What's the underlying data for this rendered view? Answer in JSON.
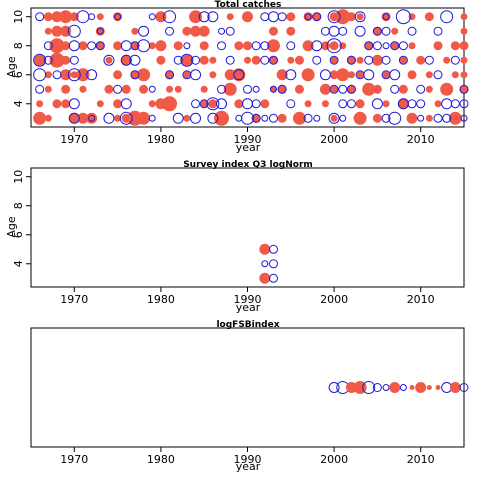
{
  "chart_data": [
    {
      "type": "scatter",
      "title": "Total catches",
      "xlabel": "year",
      "ylabel": "Age",
      "xlim": [
        1965,
        2015
      ],
      "ylim": [
        2.4,
        10.6
      ],
      "xticks": [
        1970,
        1980,
        1990,
        2000,
        2010
      ],
      "yticks": [
        4,
        6,
        8,
        10
      ],
      "x": [
        1966,
        1967,
        1968,
        1969,
        1970,
        1971,
        1972,
        1973,
        1974,
        1975,
        1976,
        1977,
        1978,
        1979,
        1980,
        1981,
        1982,
        1983,
        1984,
        1985,
        1986,
        1987,
        1988,
        1989,
        1990,
        1991,
        1992,
        1993,
        1994,
        1995,
        1996,
        1997,
        1998,
        1999,
        2000,
        2001,
        2002,
        2003,
        2004,
        2005,
        2006,
        2007,
        2008,
        2009,
        2010,
        2011,
        2012,
        2013,
        2014,
        2015
      ],
      "ages": [
        3,
        4,
        5,
        6,
        7,
        8,
        9,
        10
      ],
      "series": [
        {
          "name": "",
          "color": "#f05a46",
          "filled": true,
          "values": [
            [
              6,
              3,
              0,
              0,
              5,
              5,
              5,
              0,
              0,
              3,
              4,
              7,
              6,
              0,
              0,
              0,
              0,
              3,
              0,
              0,
              0,
              7,
              0,
              0,
              0,
              4,
              0,
              0,
              4,
              0,
              6,
              0,
              0,
              0,
              3,
              0,
              0,
              6,
              0,
              4,
              0,
              0,
              0,
              5,
              0,
              3,
              0,
              0,
              6,
              0
            ],
            [
              3,
              0,
              4,
              4,
              0,
              0,
              0,
              3,
              0,
              4,
              0,
              0,
              0,
              3,
              5,
              7,
              0,
              0,
              0,
              3,
              4,
              0,
              0,
              4,
              0,
              0,
              4,
              0,
              0,
              0,
              0,
              3,
              0,
              3,
              0,
              0,
              0,
              4,
              0,
              0,
              3,
              0,
              5,
              0,
              0,
              0,
              3,
              0,
              0,
              0
            ],
            [
              0,
              3,
              0,
              4,
              0,
              3,
              0,
              0,
              4,
              0,
              4,
              0,
              4,
              0,
              0,
              3,
              3,
              0,
              0,
              3,
              0,
              0,
              6,
              0,
              0,
              0,
              0,
              3,
              4,
              0,
              4,
              0,
              0,
              5,
              3,
              0,
              4,
              0,
              6,
              4,
              0,
              0,
              4,
              0,
              0,
              3,
              0,
              6,
              0,
              4
            ],
            [
              0,
              3,
              0,
              5,
              3,
              6,
              0,
              0,
              0,
              4,
              0,
              4,
              6,
              0,
              0,
              4,
              0,
              3,
              0,
              0,
              3,
              0,
              5,
              6,
              0,
              0,
              0,
              0,
              5,
              0,
              0,
              6,
              0,
              0,
              4,
              6,
              3,
              3,
              0,
              0,
              3,
              0,
              0,
              4,
              0,
              3,
              0,
              0,
              3,
              3
            ],
            [
              5,
              0,
              7,
              4,
              0,
              0,
              0,
              0,
              3,
              0,
              5,
              0,
              0,
              0,
              4,
              0,
              0,
              5,
              0,
              4,
              3,
              0,
              0,
              0,
              3,
              4,
              0,
              4,
              0,
              3,
              4,
              0,
              0,
              0,
              3,
              0,
              4,
              3,
              0,
              5,
              0,
              0,
              3,
              0,
              4,
              0,
              0,
              3,
              0,
              3
            ],
            [
              0,
              0,
              7,
              4,
              0,
              4,
              0,
              4,
              0,
              4,
              0,
              4,
              0,
              3,
              5,
              0,
              4,
              0,
              0,
              4,
              0,
              0,
              0,
              4,
              4,
              0,
              0,
              6,
              0,
              0,
              0,
              5,
              0,
              4,
              4,
              3,
              0,
              0,
              4,
              0,
              0,
              4,
              0,
              3,
              0,
              0,
              4,
              0,
              4,
              4
            ],
            [
              0,
              3,
              5,
              5,
              0,
              0,
              0,
              4,
              0,
              0,
              0,
              3,
              0,
              0,
              0,
              0,
              0,
              4,
              5,
              5,
              0,
              0,
              0,
              0,
              0,
              0,
              0,
              4,
              0,
              4,
              0,
              0,
              0,
              0,
              0,
              0,
              0,
              0,
              0,
              4,
              0,
              3,
              0,
              0,
              0,
              0,
              0,
              0,
              0,
              3
            ],
            [
              0,
              4,
              5,
              6,
              4,
              0,
              0,
              3,
              0,
              4,
              0,
              0,
              0,
              0,
              5,
              0,
              0,
              0,
              6,
              0,
              0,
              0,
              3,
              0,
              5,
              0,
              0,
              0,
              0,
              4,
              0,
              4,
              4,
              0,
              4,
              7,
              4,
              3,
              0,
              0,
              4,
              0,
              0,
              3,
              0,
              4,
              0,
              0,
              0,
              3
            ]
          ]
        },
        {
          "name": "",
          "color": "#1a1adc",
          "filled": false,
          "values": [
            [
              0,
              0,
              0,
              0,
              5,
              0,
              3,
              0,
              5,
              0,
              6,
              0,
              0,
              3,
              0,
              0,
              5,
              0,
              5,
              0,
              5,
              0,
              0,
              3,
              6,
              4,
              3,
              4,
              0,
              0,
              0,
              4,
              3,
              0,
              5,
              3,
              0,
              0,
              0,
              0,
              4,
              6,
              0,
              0,
              3,
              0,
              4,
              4,
              0,
              3
            ],
            [
              0,
              0,
              0,
              0,
              5,
              0,
              0,
              0,
              0,
              0,
              5,
              0,
              0,
              0,
              0,
              0,
              0,
              0,
              4,
              4,
              6,
              5,
              0,
              0,
              5,
              4,
              0,
              0,
              0,
              4,
              0,
              0,
              0,
              0,
              0,
              4,
              4,
              0,
              0,
              5,
              0,
              0,
              5,
              4,
              4,
              0,
              0,
              5,
              4,
              4
            ],
            [
              4,
              0,
              0,
              0,
              0,
              0,
              0,
              0,
              0,
              4,
              0,
              0,
              0,
              3,
              0,
              0,
              0,
              0,
              0,
              0,
              0,
              4,
              0,
              0,
              4,
              3,
              0,
              3,
              4,
              0,
              0,
              0,
              0,
              0,
              4,
              4,
              4,
              0,
              0,
              0,
              0,
              4,
              0,
              0,
              4,
              0,
              0,
              0,
              0,
              4
            ],
            [
              6,
              0,
              4,
              0,
              6,
              0,
              5,
              0,
              0,
              0,
              0,
              4,
              0,
              0,
              0,
              4,
              0,
              4,
              5,
              0,
              0,
              0,
              0,
              5,
              0,
              0,
              0,
              0,
              0,
              5,
              0,
              0,
              0,
              5,
              0,
              0,
              0,
              4,
              5,
              0,
              4,
              5,
              0,
              0,
              0,
              0,
              4,
              0,
              0,
              0
            ],
            [
              6,
              4,
              0,
              0,
              4,
              0,
              0,
              0,
              5,
              0,
              5,
              5,
              0,
              0,
              0,
              0,
              4,
              6,
              4,
              0,
              0,
              0,
              4,
              0,
              0,
              0,
              4,
              4,
              0,
              0,
              0,
              0,
              4,
              0,
              4,
              0,
              4,
              0,
              4,
              0,
              4,
              0,
              4,
              0,
              0,
              4,
              0,
              0,
              4,
              0
            ],
            [
              0,
              4,
              0,
              0,
              5,
              0,
              4,
              4,
              0,
              0,
              5,
              4,
              6,
              0,
              0,
              0,
              0,
              3,
              0,
              0,
              0,
              4,
              0,
              0,
              0,
              4,
              4,
              0,
              0,
              4,
              0,
              0,
              5,
              0,
              7,
              0,
              0,
              0,
              4,
              4,
              3,
              4,
              4,
              0,
              0,
              0,
              0,
              0,
              0,
              0
            ],
            [
              0,
              0,
              0,
              0,
              6,
              0,
              0,
              3,
              0,
              0,
              0,
              0,
              5,
              0,
              0,
              4,
              0,
              0,
              0,
              0,
              0,
              3,
              4,
              0,
              0,
              0,
              0,
              0,
              0,
              0,
              0,
              0,
              0,
              4,
              5,
              4,
              0,
              5,
              0,
              4,
              4,
              0,
              0,
              4,
              0,
              0,
              4,
              0,
              0,
              0
            ],
            [
              4,
              0,
              0,
              0,
              0,
              6,
              3,
              0,
              0,
              3,
              0,
              0,
              0,
              3,
              0,
              6,
              0,
              0,
              0,
              5,
              5,
              0,
              0,
              0,
              0,
              0,
              4,
              5,
              4,
              0,
              0,
              3,
              4,
              0,
              6,
              0,
              0,
              5,
              0,
              0,
              3,
              0,
              7,
              0,
              0,
              0,
              0,
              6,
              0,
              0
            ]
          ]
        }
      ]
    },
    {
      "type": "scatter",
      "title": "Survey index Q3 logNorm",
      "xlabel": "year",
      "ylabel": "Age",
      "xlim": [
        1965,
        2015
      ],
      "ylim": [
        2.4,
        10.6
      ],
      "xticks": [
        1970,
        1980,
        1990,
        2000,
        2010
      ],
      "yticks": [
        4,
        6,
        8,
        10
      ],
      "points": [
        {
          "x": 1992,
          "y": 3,
          "r": 5,
          "filled": true
        },
        {
          "x": 1993,
          "y": 3,
          "r": 4,
          "filled": false
        },
        {
          "x": 1992,
          "y": 4,
          "r": 3,
          "filled": false
        },
        {
          "x": 1993,
          "y": 4,
          "r": 4,
          "filled": false
        },
        {
          "x": 1992,
          "y": 5,
          "r": 5,
          "filled": true
        },
        {
          "x": 1993,
          "y": 5,
          "r": 4,
          "filled": false
        }
      ]
    },
    {
      "type": "scatter",
      "title": "logFSBindex",
      "xlabel": "year",
      "ylabel": "",
      "xlim": [
        1965,
        2015
      ],
      "xticks": [
        1970,
        1980,
        1990,
        2000,
        2010
      ],
      "points": [
        {
          "x": 2000,
          "r": 5,
          "filled": false
        },
        {
          "x": 2001,
          "r": 6,
          "filled": false
        },
        {
          "x": 2002,
          "r": 5,
          "filled": true
        },
        {
          "x": 2003,
          "r": 6,
          "filled": true
        },
        {
          "x": 2004,
          "r": 6,
          "filled": false
        },
        {
          "x": 2005,
          "r": 4,
          "filled": false
        },
        {
          "x": 2006,
          "r": 3,
          "filled": false
        },
        {
          "x": 2007,
          "r": 5,
          "filled": true
        },
        {
          "x": 2008,
          "r": 3,
          "filled": false
        },
        {
          "x": 2009,
          "r": 2,
          "filled": true
        },
        {
          "x": 2010,
          "r": 5,
          "filled": true
        },
        {
          "x": 2011,
          "r": 2,
          "filled": true
        },
        {
          "x": 2012,
          "r": 2,
          "filled": true
        },
        {
          "x": 2013,
          "r": 5,
          "filled": false
        },
        {
          "x": 2014,
          "r": 5,
          "filled": true
        },
        {
          "x": 2015,
          "r": 4,
          "filled": false
        }
      ]
    }
  ],
  "colors": {
    "positive": "#f05a46",
    "negative": "#1a1adc"
  }
}
